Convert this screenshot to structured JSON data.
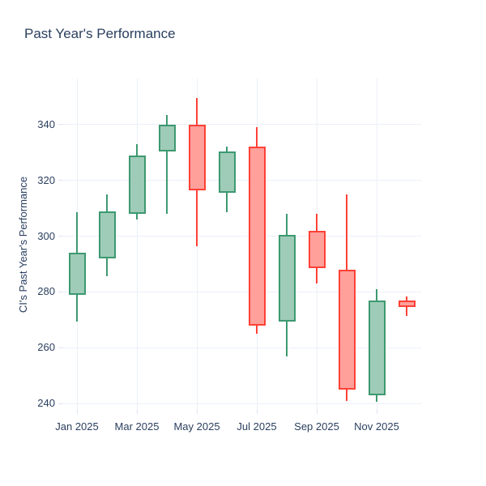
{
  "figure": {
    "title": "Past Year's Performance",
    "y_axis_title": "CI's Past Year's Performance"
  },
  "chart_data": {
    "type": "candlestick",
    "title": "Past Year's Performance",
    "xlabel": "",
    "ylabel": "CI's Past Year's Performance",
    "categories": [
      "Jan 2025",
      "Feb 2025",
      "Mar 2025",
      "Apr 2025",
      "May 2025",
      "Jun 2025",
      "Jul 2025",
      "Aug 2025",
      "Sep 2025",
      "Oct 2025",
      "Nov 2025",
      "Dec 2025"
    ],
    "ohlc": [
      {
        "month": "Jan 2025",
        "open": 279,
        "high": 308.5,
        "low": 269.5,
        "close": 294,
        "direction": "increasing"
      },
      {
        "month": "Feb 2025",
        "open": 292,
        "high": 315,
        "low": 285.5,
        "close": 309,
        "direction": "increasing"
      },
      {
        "month": "Mar 2025",
        "open": 308,
        "high": 333,
        "low": 306,
        "close": 329,
        "direction": "increasing"
      },
      {
        "month": "Apr 2025",
        "open": 330.5,
        "high": 343.5,
        "low": 308,
        "close": 340,
        "direction": "increasing"
      },
      {
        "month": "May 2025",
        "open": 340,
        "high": 349.5,
        "low": 296.5,
        "close": 316.5,
        "direction": "decreasing"
      },
      {
        "month": "Jun 2025",
        "open": 315.5,
        "high": 332,
        "low": 308.5,
        "close": 330.5,
        "direction": "increasing"
      },
      {
        "month": "Jul 2025",
        "open": 332,
        "high": 339,
        "low": 265,
        "close": 268,
        "direction": "decreasing"
      },
      {
        "month": "Aug 2025",
        "open": 269.5,
        "high": 308,
        "low": 257,
        "close": 300.5,
        "direction": "increasing"
      },
      {
        "month": "Sep 2025",
        "open": 302,
        "high": 308,
        "low": 283,
        "close": 288.5,
        "direction": "decreasing"
      },
      {
        "month": "Oct 2025",
        "open": 288,
        "high": 315,
        "low": 241,
        "close": 245,
        "direction": "decreasing"
      },
      {
        "month": "Nov 2025",
        "open": 243,
        "high": 281,
        "low": 240.5,
        "close": 277,
        "direction": "increasing"
      },
      {
        "month": "Dec 2025",
        "open": 277,
        "high": 278.5,
        "low": 271.5,
        "close": 274.5,
        "direction": "decreasing"
      }
    ],
    "x_tick_labels": [
      "Jan 2025",
      "Mar 2025",
      "May 2025",
      "Jul 2025",
      "Sep 2025",
      "Nov 2025"
    ],
    "x_tick_indices": [
      0,
      2,
      4,
      6,
      8,
      10
    ],
    "y_ticks": [
      240,
      260,
      280,
      300,
      320,
      340
    ],
    "y_range": [
      238,
      356.5
    ],
    "grid": true,
    "legend": "none",
    "colors": {
      "background": "#ffffff",
      "grid": "#ebf0f8",
      "text": "#2a3f5f",
      "increasing_line": "#3d9970",
      "increasing_fill": "#9eccb8",
      "decreasing_line": "#ff4136",
      "decreasing_fill": "#ffa09b"
    }
  }
}
